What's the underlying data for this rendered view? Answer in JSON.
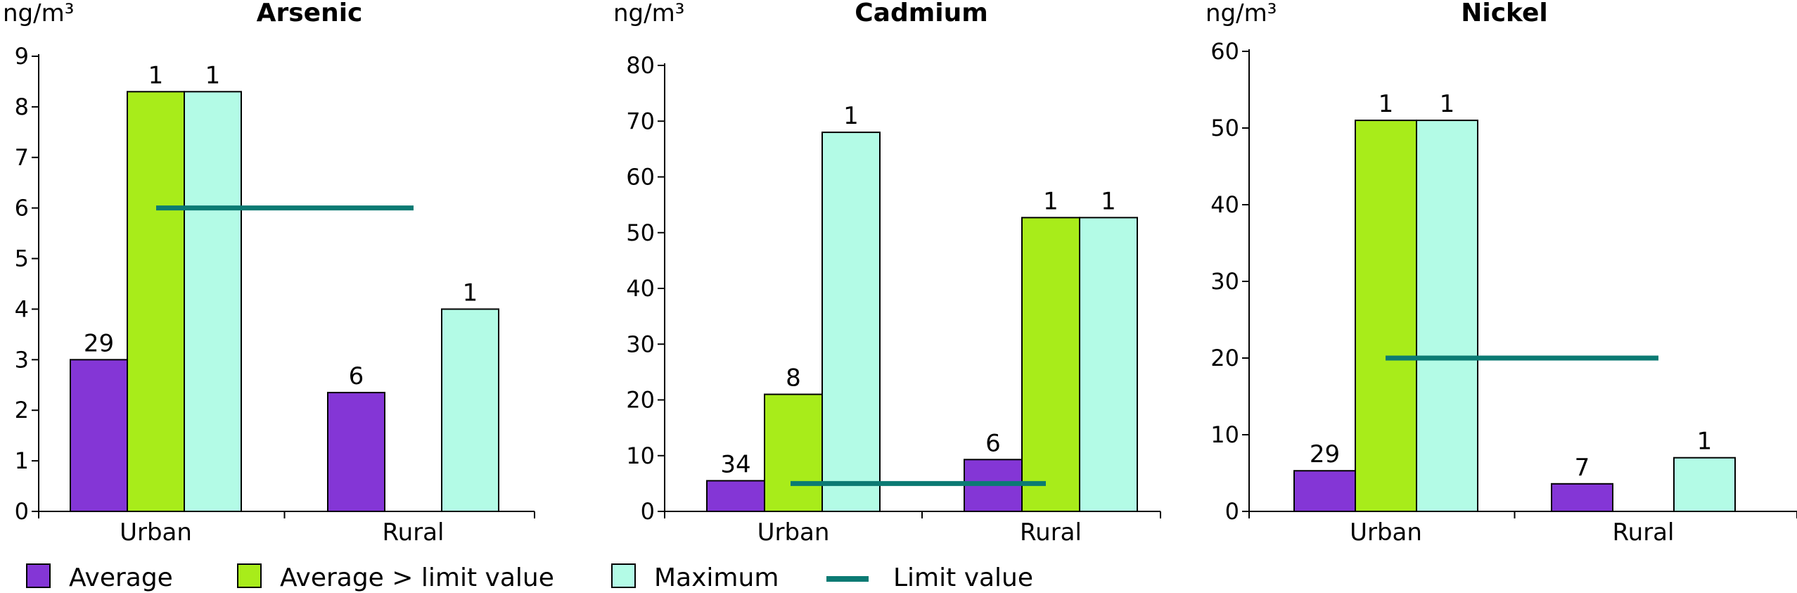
{
  "chart_data": [
    {
      "type": "bar",
      "title": "Arsenic",
      "ylabel": "ng/m³",
      "ylim": [
        0,
        9
      ],
      "yticks": [
        0,
        1,
        2,
        3,
        4,
        5,
        6,
        7,
        8,
        9
      ],
      "categories": [
        "Urban",
        "Rural"
      ],
      "series": [
        {
          "name": "Average",
          "values": [
            3.0,
            2.35
          ],
          "labels": [
            "29",
            "6"
          ]
        },
        {
          "name": "Average > limit value",
          "values": [
            8.3,
            null
          ],
          "labels": [
            "1",
            null
          ]
        },
        {
          "name": "Maximum",
          "values": [
            8.3,
            4.0
          ],
          "labels": [
            "1",
            "1"
          ]
        }
      ],
      "limit_value": 6
    },
    {
      "type": "bar",
      "title": "Cadmium",
      "ylabel": "ng/m³",
      "ylim": [
        0,
        80
      ],
      "yticks": [
        0,
        10,
        20,
        30,
        40,
        50,
        60,
        70,
        80
      ],
      "categories": [
        "Urban",
        "Rural"
      ],
      "series": [
        {
          "name": "Average",
          "values": [
            5.5,
            9.3
          ],
          "labels": [
            "34",
            "6"
          ]
        },
        {
          "name": "Average > limit value",
          "values": [
            21.0,
            52.7
          ],
          "labels": [
            "8",
            "1"
          ]
        },
        {
          "name": "Maximum",
          "values": [
            68.0,
            52.7
          ],
          "labels": [
            "1",
            "1"
          ]
        }
      ],
      "limit_value": 5
    },
    {
      "type": "bar",
      "title": "Nickel",
      "ylabel": "ng/m³",
      "ylim": [
        0,
        60
      ],
      "yticks": [
        0,
        10,
        20,
        30,
        40,
        50,
        60
      ],
      "categories": [
        "Urban",
        "Rural"
      ],
      "series": [
        {
          "name": "Average",
          "values": [
            5.3,
            3.6
          ],
          "labels": [
            "29",
            "7"
          ]
        },
        {
          "name": "Average > limit value",
          "values": [
            51.0,
            null
          ],
          "labels": [
            "1",
            null
          ]
        },
        {
          "name": "Maximum",
          "values": [
            51.0,
            7.0
          ],
          "labels": [
            "1",
            "1"
          ]
        }
      ],
      "limit_value": 20
    }
  ],
  "legend": {
    "items": [
      {
        "label": "Average",
        "kind": "box",
        "color": "#8436d6"
      },
      {
        "label": "Average > limit value",
        "kind": "box",
        "color": "#a8ec1a"
      },
      {
        "label": "Maximum",
        "kind": "box",
        "color": "#b3fbe6"
      },
      {
        "label": "Limit value",
        "kind": "line",
        "color": "#0b7a73"
      }
    ]
  },
  "colors": {
    "average": "#8436d6",
    "average_over_limit": "#a8ec1a",
    "maximum": "#b3fbe6",
    "limit_line": "#0b7a73",
    "bar_stroke": "#000000"
  }
}
